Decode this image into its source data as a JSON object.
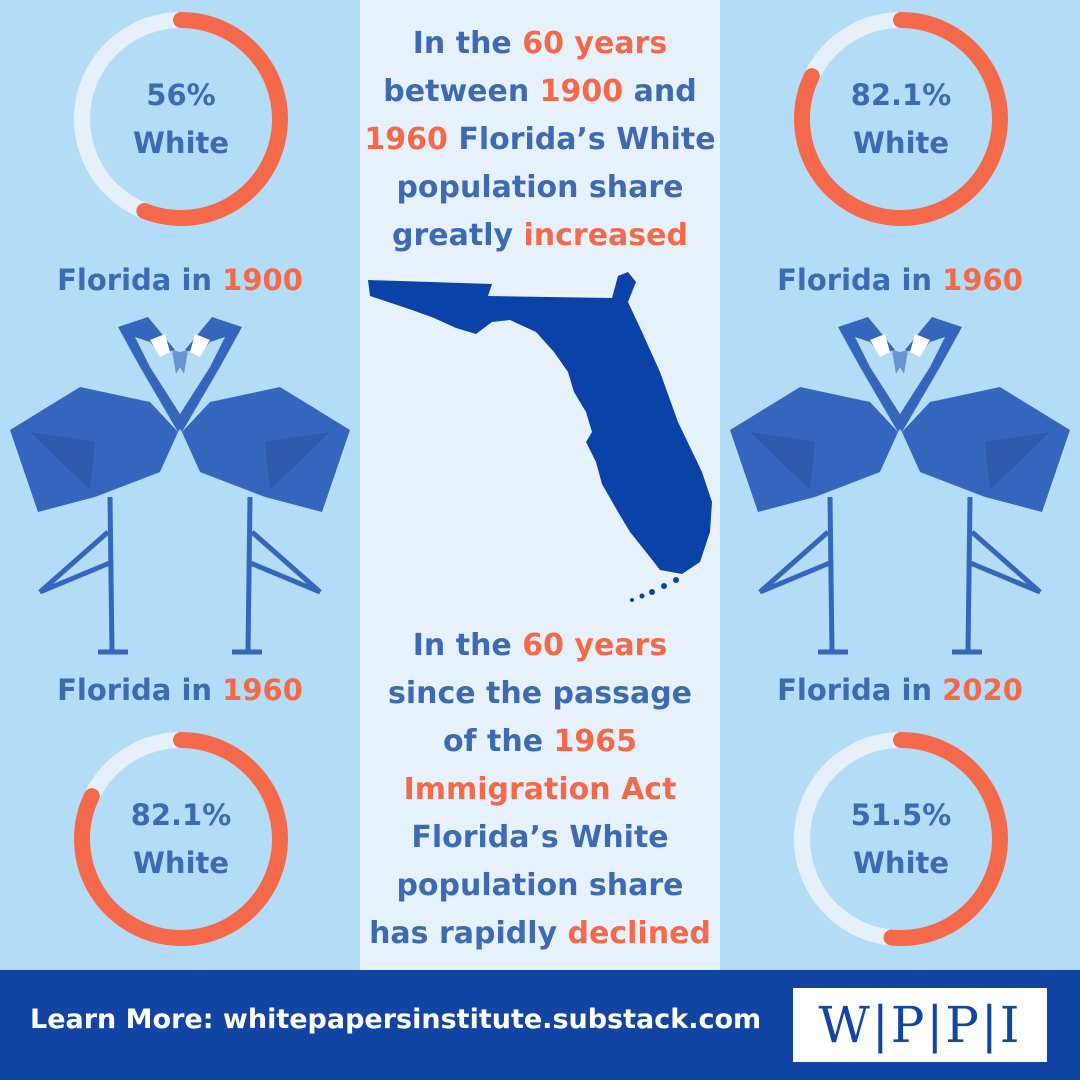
{
  "chart_data": [
    {
      "type": "pie",
      "title": "Florida in 1900",
      "categories": [
        "White"
      ],
      "values": [
        56
      ],
      "label": "56%",
      "sublabel": "White"
    },
    {
      "type": "pie",
      "title": "Florida in 1960",
      "categories": [
        "White"
      ],
      "values": [
        82.1
      ],
      "label": "82.1%",
      "sublabel": "White"
    },
    {
      "type": "pie",
      "title": "Florida in 1960",
      "categories": [
        "White"
      ],
      "values": [
        82.1
      ],
      "label": "82.1%",
      "sublabel": "White"
    },
    {
      "type": "pie",
      "title": "Florida in 2020",
      "categories": [
        "White"
      ],
      "values": [
        51.5
      ],
      "label": "51.5%",
      "sublabel": "White"
    }
  ],
  "captions": {
    "tl": {
      "prefix": "Florida in ",
      "year": "1900"
    },
    "tr": {
      "prefix": "Florida in ",
      "year": "1960"
    },
    "bl": {
      "prefix": "Florida in ",
      "year": "1960"
    },
    "br": {
      "prefix": "Florida in ",
      "year": "2020"
    }
  },
  "top_text": [
    [
      {
        "t": "In the ",
        "h": false
      },
      {
        "t": "60 years",
        "h": true
      }
    ],
    [
      {
        "t": "between ",
        "h": false
      },
      {
        "t": "1900",
        "h": true
      },
      {
        "t": " and",
        "h": false
      }
    ],
    [
      {
        "t": "1960",
        "h": true
      },
      {
        "t": " Florida’s White",
        "h": false
      }
    ],
    [
      {
        "t": "population share",
        "h": false
      }
    ],
    [
      {
        "t": "greatly ",
        "h": false
      },
      {
        "t": "increased",
        "h": true
      }
    ]
  ],
  "bottom_text": [
    [
      {
        "t": "In the ",
        "h": false
      },
      {
        "t": "60 years",
        "h": true
      }
    ],
    [
      {
        "t": "since the passage",
        "h": false
      }
    ],
    [
      {
        "t": "of the ",
        "h": false
      },
      {
        "t": "1965",
        "h": true
      }
    ],
    [
      {
        "t": "Immigration Act",
        "h": true
      }
    ],
    [
      {
        "t": "Florida’s White",
        "h": false
      }
    ],
    [
      {
        "t": "population share",
        "h": false
      }
    ],
    [
      {
        "t": "has rapidly ",
        "h": false
      },
      {
        "t": "declined",
        "h": true
      }
    ]
  ],
  "footer": {
    "text": "Learn More: whitepapersinstitute.substack.com",
    "logo": "W|P|P|I"
  },
  "colors": {
    "accent": "#f4694a",
    "text": "#3d6bb3",
    "ring_track": "#e6f0fa",
    "flamingo": "#3566bd",
    "map": "#0a43a8",
    "footer": "#1144a3"
  },
  "icons": {
    "left": "flamingo-pair-icon",
    "right": "flamingo-pair-icon",
    "center": "florida-map-icon"
  }
}
